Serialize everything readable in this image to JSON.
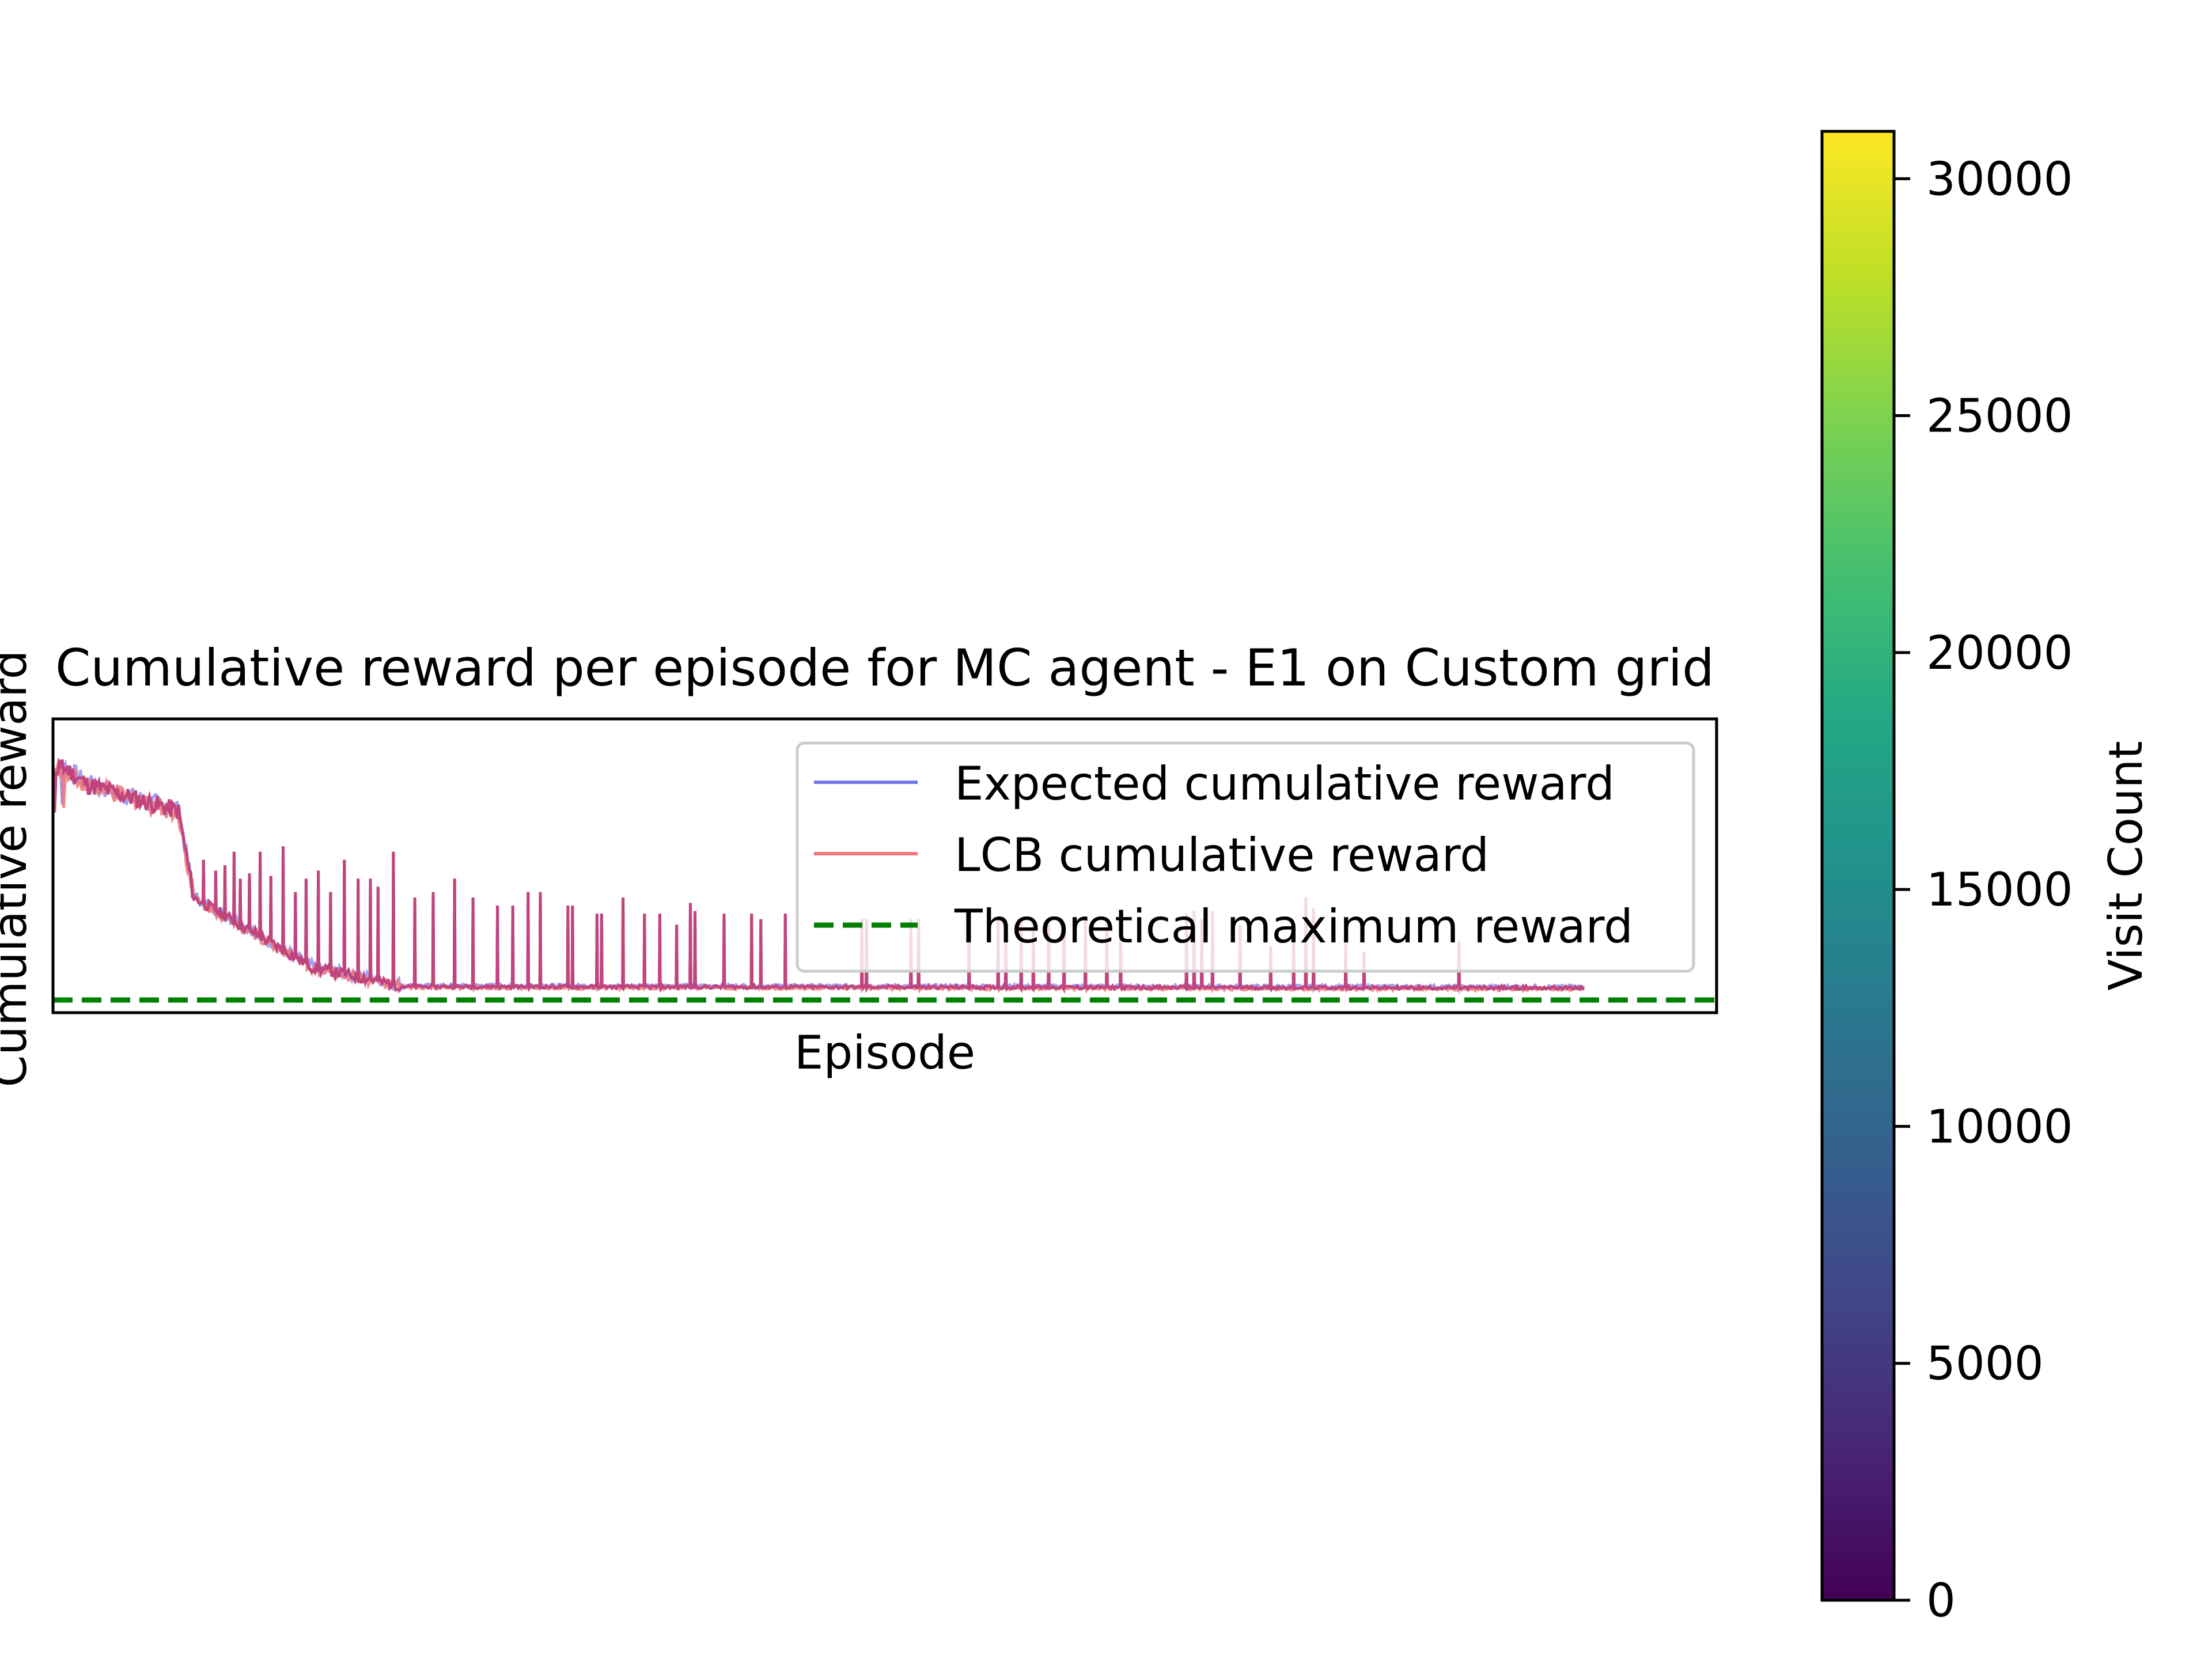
{
  "chart_data": [
    {
      "type": "line",
      "title": "Cumulative reward per episode for MC agent - E1 on Custom grid",
      "xlabel": "Episode",
      "ylabel": "Cumulative reward",
      "x_ticks_shown": false,
      "y_ticks_shown": false,
      "grid": false,
      "legend": {
        "position": "upper right",
        "entries": [
          "Expected cumulative reward",
          "LCB cumulative reward",
          "Theoretical maximum reward"
        ]
      },
      "theoretical_max": 0,
      "series": [
        {
          "name": "Expected cumulative reward",
          "color": "#7777ee"
        },
        {
          "name": "LCB cumulative reward",
          "color": "#ee7777"
        },
        {
          "name": "Theoretical maximum reward",
          "color": "#008000",
          "style": "dashed"
        }
      ],
      "curve": {
        "segments": [
          {
            "x0": 0,
            "x1": 8,
            "level_start": 0.86,
            "level_end": 0.86
          },
          {
            "x0": 8,
            "x1": 22,
            "level_start": 0.86,
            "level_end": 0.8
          },
          {
            "x0": 22,
            "x1": 82,
            "level_start": 0.8,
            "level_end": 0.7
          },
          {
            "x0": 82,
            "x1": 92,
            "level_start": 0.7,
            "level_end": 0.38
          },
          {
            "x0": 92,
            "x1": 170,
            "level_start": 0.38,
            "level_end": 0.12
          },
          {
            "x0": 170,
            "x1": 230,
            "level_start": 0.12,
            "level_end": 0.05
          },
          {
            "x0": 230,
            "x1": 1000,
            "level_start": 0.05,
            "level_end": 0.045
          }
        ],
        "spikes": [
          [
            98,
            0.52
          ],
          [
            106,
            0.48
          ],
          [
            112,
            0.5
          ],
          [
            118,
            0.55
          ],
          [
            122,
            0.45
          ],
          [
            128,
            0.47
          ],
          [
            135,
            0.55
          ],
          [
            142,
            0.46
          ],
          [
            150,
            0.57
          ],
          [
            158,
            0.4
          ],
          [
            165,
            0.45
          ],
          [
            173,
            0.48
          ],
          [
            181,
            0.4
          ],
          [
            190,
            0.52
          ],
          [
            199,
            0.45
          ],
          [
            207,
            0.45
          ],
          [
            212,
            0.42
          ],
          [
            222,
            0.55
          ],
          [
            236,
            0.38
          ],
          [
            248,
            0.4
          ],
          [
            262,
            0.45
          ],
          [
            274,
            0.38
          ],
          [
            290,
            0.35
          ],
          [
            300,
            0.35
          ],
          [
            310,
            0.4
          ],
          [
            318,
            0.4
          ],
          [
            336,
            0.35
          ],
          [
            339,
            0.35
          ],
          [
            355,
            0.32
          ],
          [
            358,
            0.32
          ],
          [
            372,
            0.38
          ],
          [
            386,
            0.32
          ],
          [
            396,
            0.32
          ],
          [
            407,
            0.28
          ],
          [
            416,
            0.36
          ],
          [
            419,
            0.33
          ],
          [
            438,
            0.32
          ],
          [
            456,
            0.32
          ],
          [
            462,
            0.3
          ],
          [
            478,
            0.32
          ],
          [
            528,
            0.3
          ],
          [
            531,
            0.3
          ],
          [
            560,
            0.3
          ],
          [
            565,
            0.3
          ],
          [
            598,
            0.28
          ],
          [
            617,
            0.3
          ],
          [
            622,
            0.28
          ],
          [
            632,
            0.3
          ],
          [
            640,
            0.3
          ],
          [
            650,
            0.28
          ],
          [
            660,
            0.28
          ],
          [
            674,
            0.3
          ],
          [
            688,
            0.3
          ],
          [
            697,
            0.28
          ],
          [
            740,
            0.32
          ],
          [
            745,
            0.33
          ],
          [
            750,
            0.3
          ],
          [
            757,
            0.33
          ],
          [
            775,
            0.28
          ],
          [
            795,
            0.2
          ],
          [
            810,
            0.25
          ],
          [
            818,
            0.38
          ],
          [
            823,
            0.34
          ],
          [
            844,
            0.22
          ],
          [
            856,
            0.18
          ],
          [
            918,
            0.22
          ]
        ]
      }
    },
    {
      "type": "heatmap",
      "colorbar_label": "Visit Count",
      "colormap": "viridis",
      "range": [
        0,
        31000
      ],
      "ticks": [
        "0",
        "5000",
        "10000",
        "15000",
        "20000",
        "25000",
        "30000"
      ],
      "tick_values": [
        0,
        5000,
        10000,
        15000,
        20000,
        25000,
        30000
      ]
    }
  ]
}
